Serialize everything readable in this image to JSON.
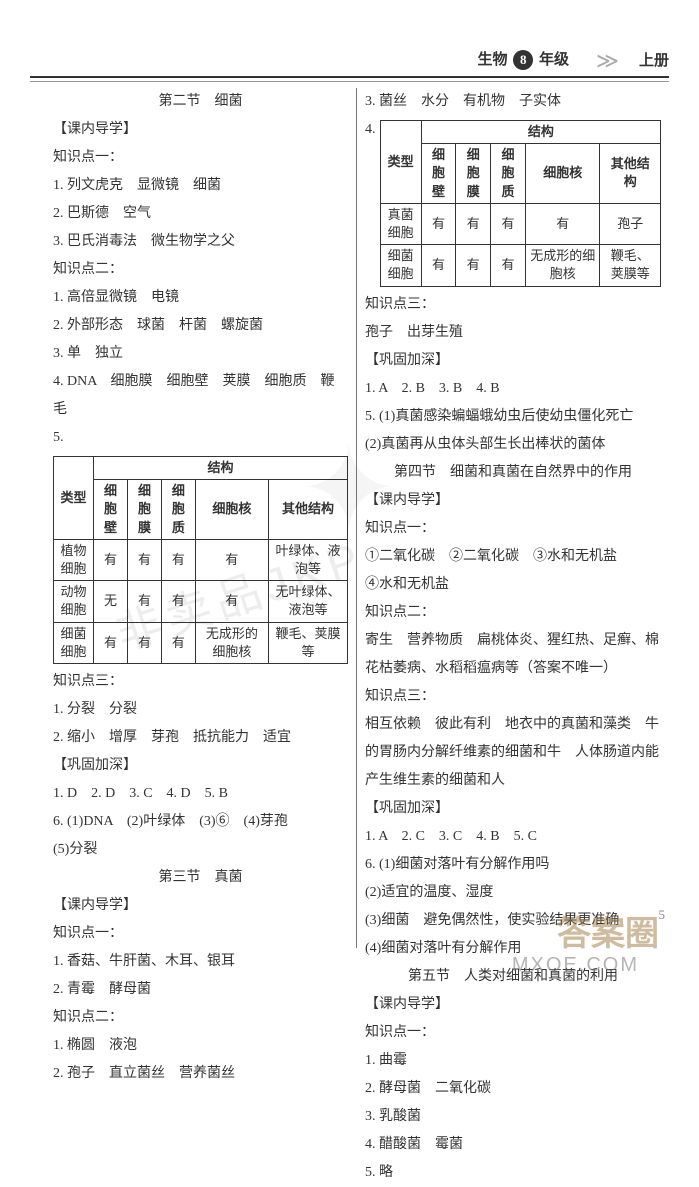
{
  "header": {
    "subject": "生物",
    "grade": "8",
    "grade_suffix": "年级",
    "arrows": "≫",
    "volume": "上册"
  },
  "page_number": "5",
  "watermarks": {
    "w1": "非卖品JKP",
    "w2": "答案圈",
    "w3": "MXQE.COM",
    "star": "✦"
  },
  "left": {
    "sec_title": "第二节　细菌",
    "h1": "【课内导学】",
    "kp1": "知识点一：",
    "l1": "1. 列文虎克　显微镜　细菌",
    "l2": "2. 巴斯德　空气",
    "l3": "3. 巴氏消毒法　微生物学之父",
    "kp2": "知识点二：",
    "l4": "1. 高倍显微镜　电镜",
    "l5": "2. 外部形态　球菌　杆菌　螺旋菌",
    "l6": "3. 单　独立",
    "l7": "4. DNA　细胞膜　细胞壁　荚膜　细胞质　鞭毛",
    "l8": "5.",
    "table1": {
      "head_type": "类型",
      "head_struct": "结构",
      "cols": [
        "细胞壁",
        "细胞膜",
        "细胞质",
        "细胞核",
        "其他结构"
      ],
      "rows": [
        {
          "name": "植物细胞",
          "cells": [
            "有",
            "有",
            "有",
            "有",
            "叶绿体、液泡等"
          ]
        },
        {
          "name": "动物细胞",
          "cells": [
            "无",
            "有",
            "有",
            "有",
            "无叶绿体、液泡等"
          ]
        },
        {
          "name": "细菌细胞",
          "cells": [
            "有",
            "有",
            "有",
            "无成形的细胞核",
            "鞭毛、荚膜等"
          ]
        }
      ]
    },
    "kp3": "知识点三：",
    "l9": "1. 分裂　分裂",
    "l10": "2. 缩小　增厚　芽孢　抵抗能力　适宜",
    "h2": "【巩固加深】",
    "l11": "1. D　2. D　3. C　4. D　5. B",
    "l12": "6. (1)DNA　(2)叶绿体　(3)⑥　(4)芽孢",
    "l13": "(5)分裂",
    "sec_title2": "第三节　真菌",
    "h3": "【课内导学】",
    "kp1b": "知识点一：",
    "l14": "1. 香菇、牛肝菌、木耳、银耳",
    "l15": "2. 青霉　酵母菌",
    "kp2b": "知识点二：",
    "l16": "1. 椭圆　液泡",
    "l17": "2. 孢子　直立菌丝　营养菌丝"
  },
  "right": {
    "l1": "3. 菌丝　水分　有机物　子实体",
    "l2": "4.",
    "table2": {
      "head_type": "类型",
      "head_struct": "结构",
      "cols": [
        "细胞壁",
        "细胞膜",
        "细胞质",
        "细胞核",
        "其他结构"
      ],
      "rows": [
        {
          "name": "真菌细胞",
          "cells": [
            "有",
            "有",
            "有",
            "有",
            "孢子"
          ]
        },
        {
          "name": "细菌细胞",
          "cells": [
            "有",
            "有",
            "有",
            "无成形的细胞核",
            "鞭毛、荚膜等"
          ]
        }
      ]
    },
    "kp3": "知识点三：",
    "l3": "孢子　出芽生殖",
    "h1": "【巩固加深】",
    "l4": "1. A　2. B　3. B　4. B",
    "l5": "5. (1)真菌感染蝙蝠蛾幼虫后使幼虫僵化死亡",
    "l6": "(2)真菌再从虫体头部生长出棒状的菌体",
    "sec_title": "第四节　细菌和真菌在自然界中的作用",
    "h2": "【课内导学】",
    "kp1": "知识点一：",
    "l7": "①二氧化碳　②二氧化碳　③水和无机盐",
    "l8": "④水和无机盐",
    "kp2": "知识点二：",
    "l9": "寄生　营养物质　扁桃体炎、猩红热、足癣、棉花枯萎病、水稻稻瘟病等（答案不唯一）",
    "kp3b": "知识点三：",
    "l10": "相互依赖　彼此有利　地衣中的真菌和藻类　牛的胃肠内分解纤维素的细菌和牛　人体肠道内能产生维生素的细菌和人",
    "h3": "【巩固加深】",
    "l11": "1. A　2. C　3. C　4. B　5. C",
    "l12": "6. (1)细菌对落叶有分解作用吗",
    "l13": "(2)适宜的温度、湿度",
    "l14": "(3)细菌　避免偶然性，使实验结果更准确",
    "l15": "(4)细菌对落叶有分解作用",
    "sec_title2": "第五节　人类对细菌和真菌的利用",
    "h4": "【课内导学】",
    "kp1b": "知识点一：",
    "l16": "1. 曲霉",
    "l17": "2. 酵母菌　二氧化碳",
    "l18": "3. 乳酸菌",
    "l19": "4. 醋酸菌　霉菌",
    "l20": "5. 略"
  }
}
